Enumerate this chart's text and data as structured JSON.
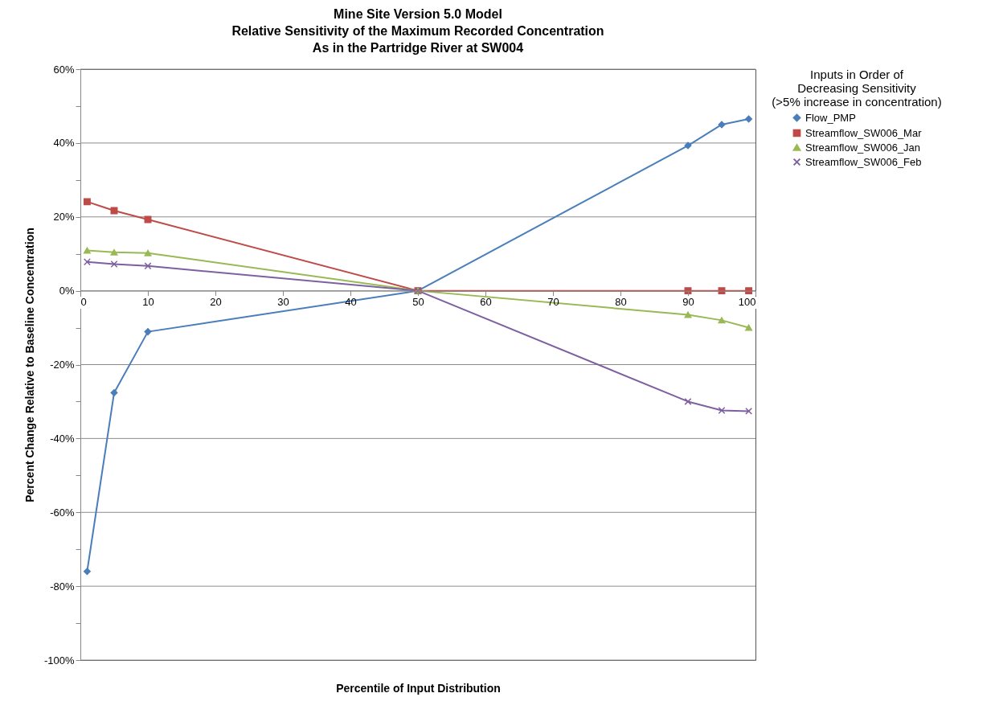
{
  "chart_data": {
    "type": "line",
    "title": "Mine Site Version 5.0 Model\nRelative Sensitivity of the Maximum Recorded Concentration\nAs in the Partridge River at SW004",
    "xlabel": "Percentile of Input Distribution",
    "ylabel": "Percent Change Relative to Baseline Concentration",
    "legend_title": "Inputs in Order of\nDecreasing Sensitivity\n(>5% increase in concentration)",
    "legend": "right",
    "grid": "y",
    "x": [
      1,
      5,
      10,
      50,
      90,
      95,
      99
    ],
    "series": [
      {
        "name": "Flow_PMP",
        "color": "#4a7ebb",
        "marker": "diamond",
        "values": [
          -76,
          -27.6,
          -11.1,
          0,
          39.3,
          45,
          46.5
        ]
      },
      {
        "name": "Streamflow_SW006_Mar",
        "color": "#be4b48",
        "marker": "square",
        "values": [
          24.1,
          21.7,
          19.3,
          0,
          0,
          0,
          0
        ]
      },
      {
        "name": "Streamflow_SW006_Jan",
        "color": "#98b954",
        "marker": "triangle",
        "values": [
          10.9,
          10.4,
          10.2,
          0,
          -6.5,
          -8,
          -10
        ]
      },
      {
        "name": "Streamflow_SW006_Feb",
        "color": "#7d60a0",
        "marker": "cross",
        "values": [
          7.8,
          7.2,
          6.7,
          0,
          -30,
          -32.4,
          -32.6
        ]
      }
    ],
    "xlim": [
      0,
      100
    ],
    "xticks": [
      0,
      10,
      20,
      30,
      40,
      50,
      60,
      70,
      80,
      90,
      100
    ],
    "ylim": [
      -100,
      60
    ],
    "yticks": [
      {
        "value": -100,
        "label": "-100%"
      },
      {
        "value": -90,
        "label": null
      },
      {
        "value": -80,
        "label": "-80%"
      },
      {
        "value": -70,
        "label": null
      },
      {
        "value": -60,
        "label": "-60%"
      },
      {
        "value": -50,
        "label": null
      },
      {
        "value": -40,
        "label": "-40%"
      },
      {
        "value": -30,
        "label": null
      },
      {
        "value": -20,
        "label": "-20%"
      },
      {
        "value": -10,
        "label": null
      },
      {
        "value": 0,
        "label": "0%"
      },
      {
        "value": 10,
        "label": null
      },
      {
        "value": 20,
        "label": "20%"
      },
      {
        "value": 30,
        "label": null
      },
      {
        "value": 40,
        "label": "40%"
      },
      {
        "value": 50,
        "label": null
      },
      {
        "value": 60,
        "label": "60%"
      }
    ]
  }
}
